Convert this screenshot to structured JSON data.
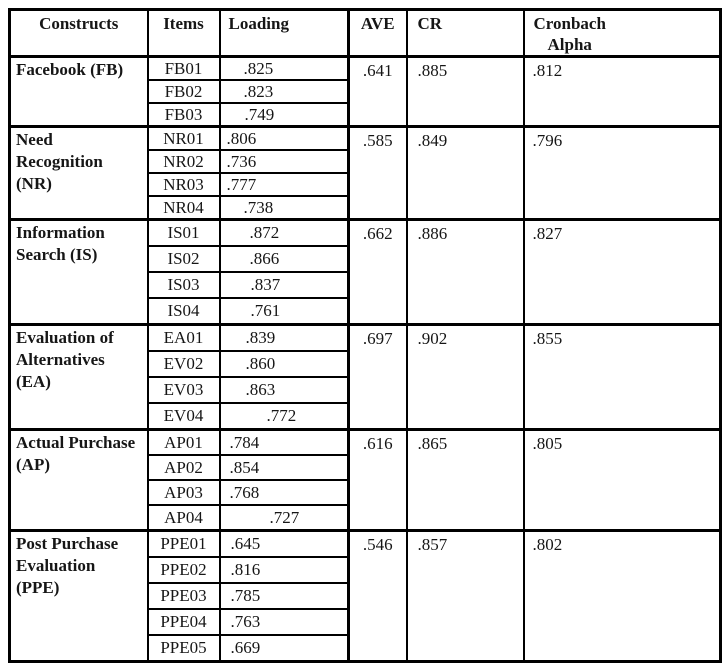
{
  "colors": {
    "background": "#ffffff",
    "border": "#000000",
    "text": "#161616"
  },
  "table": {
    "headers": {
      "constructs": "Constructs",
      "items": "Items",
      "loading": "Loading",
      "ave": "AVE",
      "cr": "CR",
      "cronbach_line1": "Cronbach",
      "cronbach_line2": "Alpha"
    },
    "constructs": [
      {
        "name": "Facebook (FB)",
        "ave": ".641",
        "cr": ".885",
        "alpha": ".812",
        "items": [
          {
            "id": "FB01",
            "loading": ".825",
            "indent": 17
          },
          {
            "id": "FB02",
            "loading": ".823",
            "indent": 17
          },
          {
            "id": "FB03",
            "loading": ".749",
            "indent": 18
          }
        ]
      },
      {
        "name": "Need Recognition (NR)",
        "ave": ".585",
        "cr": ".849",
        "alpha": ".796",
        "items": [
          {
            "id": "NR01",
            "loading": ".806",
            "indent": 0
          },
          {
            "id": "NR02",
            "loading": ".736",
            "indent": 0
          },
          {
            "id": "NR03",
            "loading": ".777",
            "indent": 0
          },
          {
            "id": "NR04",
            "loading": ".738",
            "indent": 17
          }
        ]
      },
      {
        "name": "Information Search (IS)",
        "ave": ".662",
        "cr": ".886",
        "alpha": ".827",
        "items": [
          {
            "id": "IS01",
            "loading": ".872",
            "indent": 23
          },
          {
            "id": "IS02",
            "loading": ".866",
            "indent": 23
          },
          {
            "id": "IS03",
            "loading": ".837",
            "indent": 24
          },
          {
            "id": "IS04",
            "loading": ".761",
            "indent": 24
          }
        ]
      },
      {
        "name": "Evaluation of Alternatives (EA)",
        "ave": ".697",
        "cr": ".902",
        "alpha": ".855",
        "items": [
          {
            "id": "EA01",
            "loading": ".839",
            "indent": 19
          },
          {
            "id": "EV02",
            "loading": ".860",
            "indent": 19
          },
          {
            "id": "EV03",
            "loading": ".863",
            "indent": 19
          },
          {
            "id": "EV04",
            "loading": ".772",
            "indent": 40
          }
        ]
      },
      {
        "name": "Actual Purchase (AP)",
        "ave": ".616",
        "cr": ".865",
        "alpha": ".805",
        "items": [
          {
            "id": "AP01",
            "loading": ".784",
            "indent": 3
          },
          {
            "id": "AP02",
            "loading": ".854",
            "indent": 3
          },
          {
            "id": "AP03",
            "loading": ".768",
            "indent": 3
          },
          {
            "id": "AP04",
            "loading": ".727",
            "indent": 43
          }
        ]
      },
      {
        "name": "Post Purchase Evaluation (PPE)",
        "ave": ".546",
        "cr": ".857",
        "alpha": ".802",
        "items": [
          {
            "id": "PPE01",
            "loading": ".645",
            "indent": 4
          },
          {
            "id": "PPE02",
            "loading": ".816",
            "indent": 4
          },
          {
            "id": "PPE03",
            "loading": ".785",
            "indent": 4
          },
          {
            "id": "PPE04",
            "loading": ".763",
            "indent": 4
          },
          {
            "id": "PPE05",
            "loading": ".669",
            "indent": 4
          }
        ]
      }
    ]
  }
}
